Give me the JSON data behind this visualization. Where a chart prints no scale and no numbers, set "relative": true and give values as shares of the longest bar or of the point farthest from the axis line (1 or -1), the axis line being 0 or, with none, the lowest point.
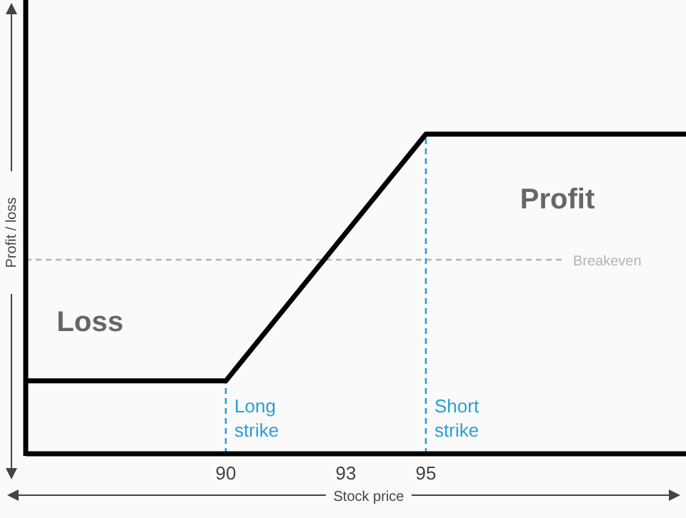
{
  "chart_data": {
    "type": "line",
    "relative": true,
    "xlabel": "Stock price",
    "ylabel": "Profit / loss",
    "x": [
      85,
      90,
      95,
      101.5
    ],
    "series": [
      {
        "color": "#000000",
        "values": [
          0.228,
          0.228,
          1,
          1
        ]
      }
    ],
    "xlim": [
      85,
      101.5
    ],
    "xticks": [
      90,
      93,
      95
    ],
    "grid": false,
    "marker": "none",
    "line_style": "solid",
    "ref_lines": [
      {
        "axis": "y",
        "value": 0.607,
        "label": "Breakeven",
        "color": "#b4b4b4",
        "line_style": "dashed"
      },
      {
        "axis": "x",
        "value": 90,
        "label": "Long strike",
        "color": "#2a9fd8",
        "line_style": "dashed"
      },
      {
        "axis": "x",
        "value": 95,
        "label": "Short strike",
        "color": "#2a9fd8",
        "line_style": "dashed"
      }
    ],
    "annotations": [
      "Loss",
      "Profit"
    ]
  }
}
